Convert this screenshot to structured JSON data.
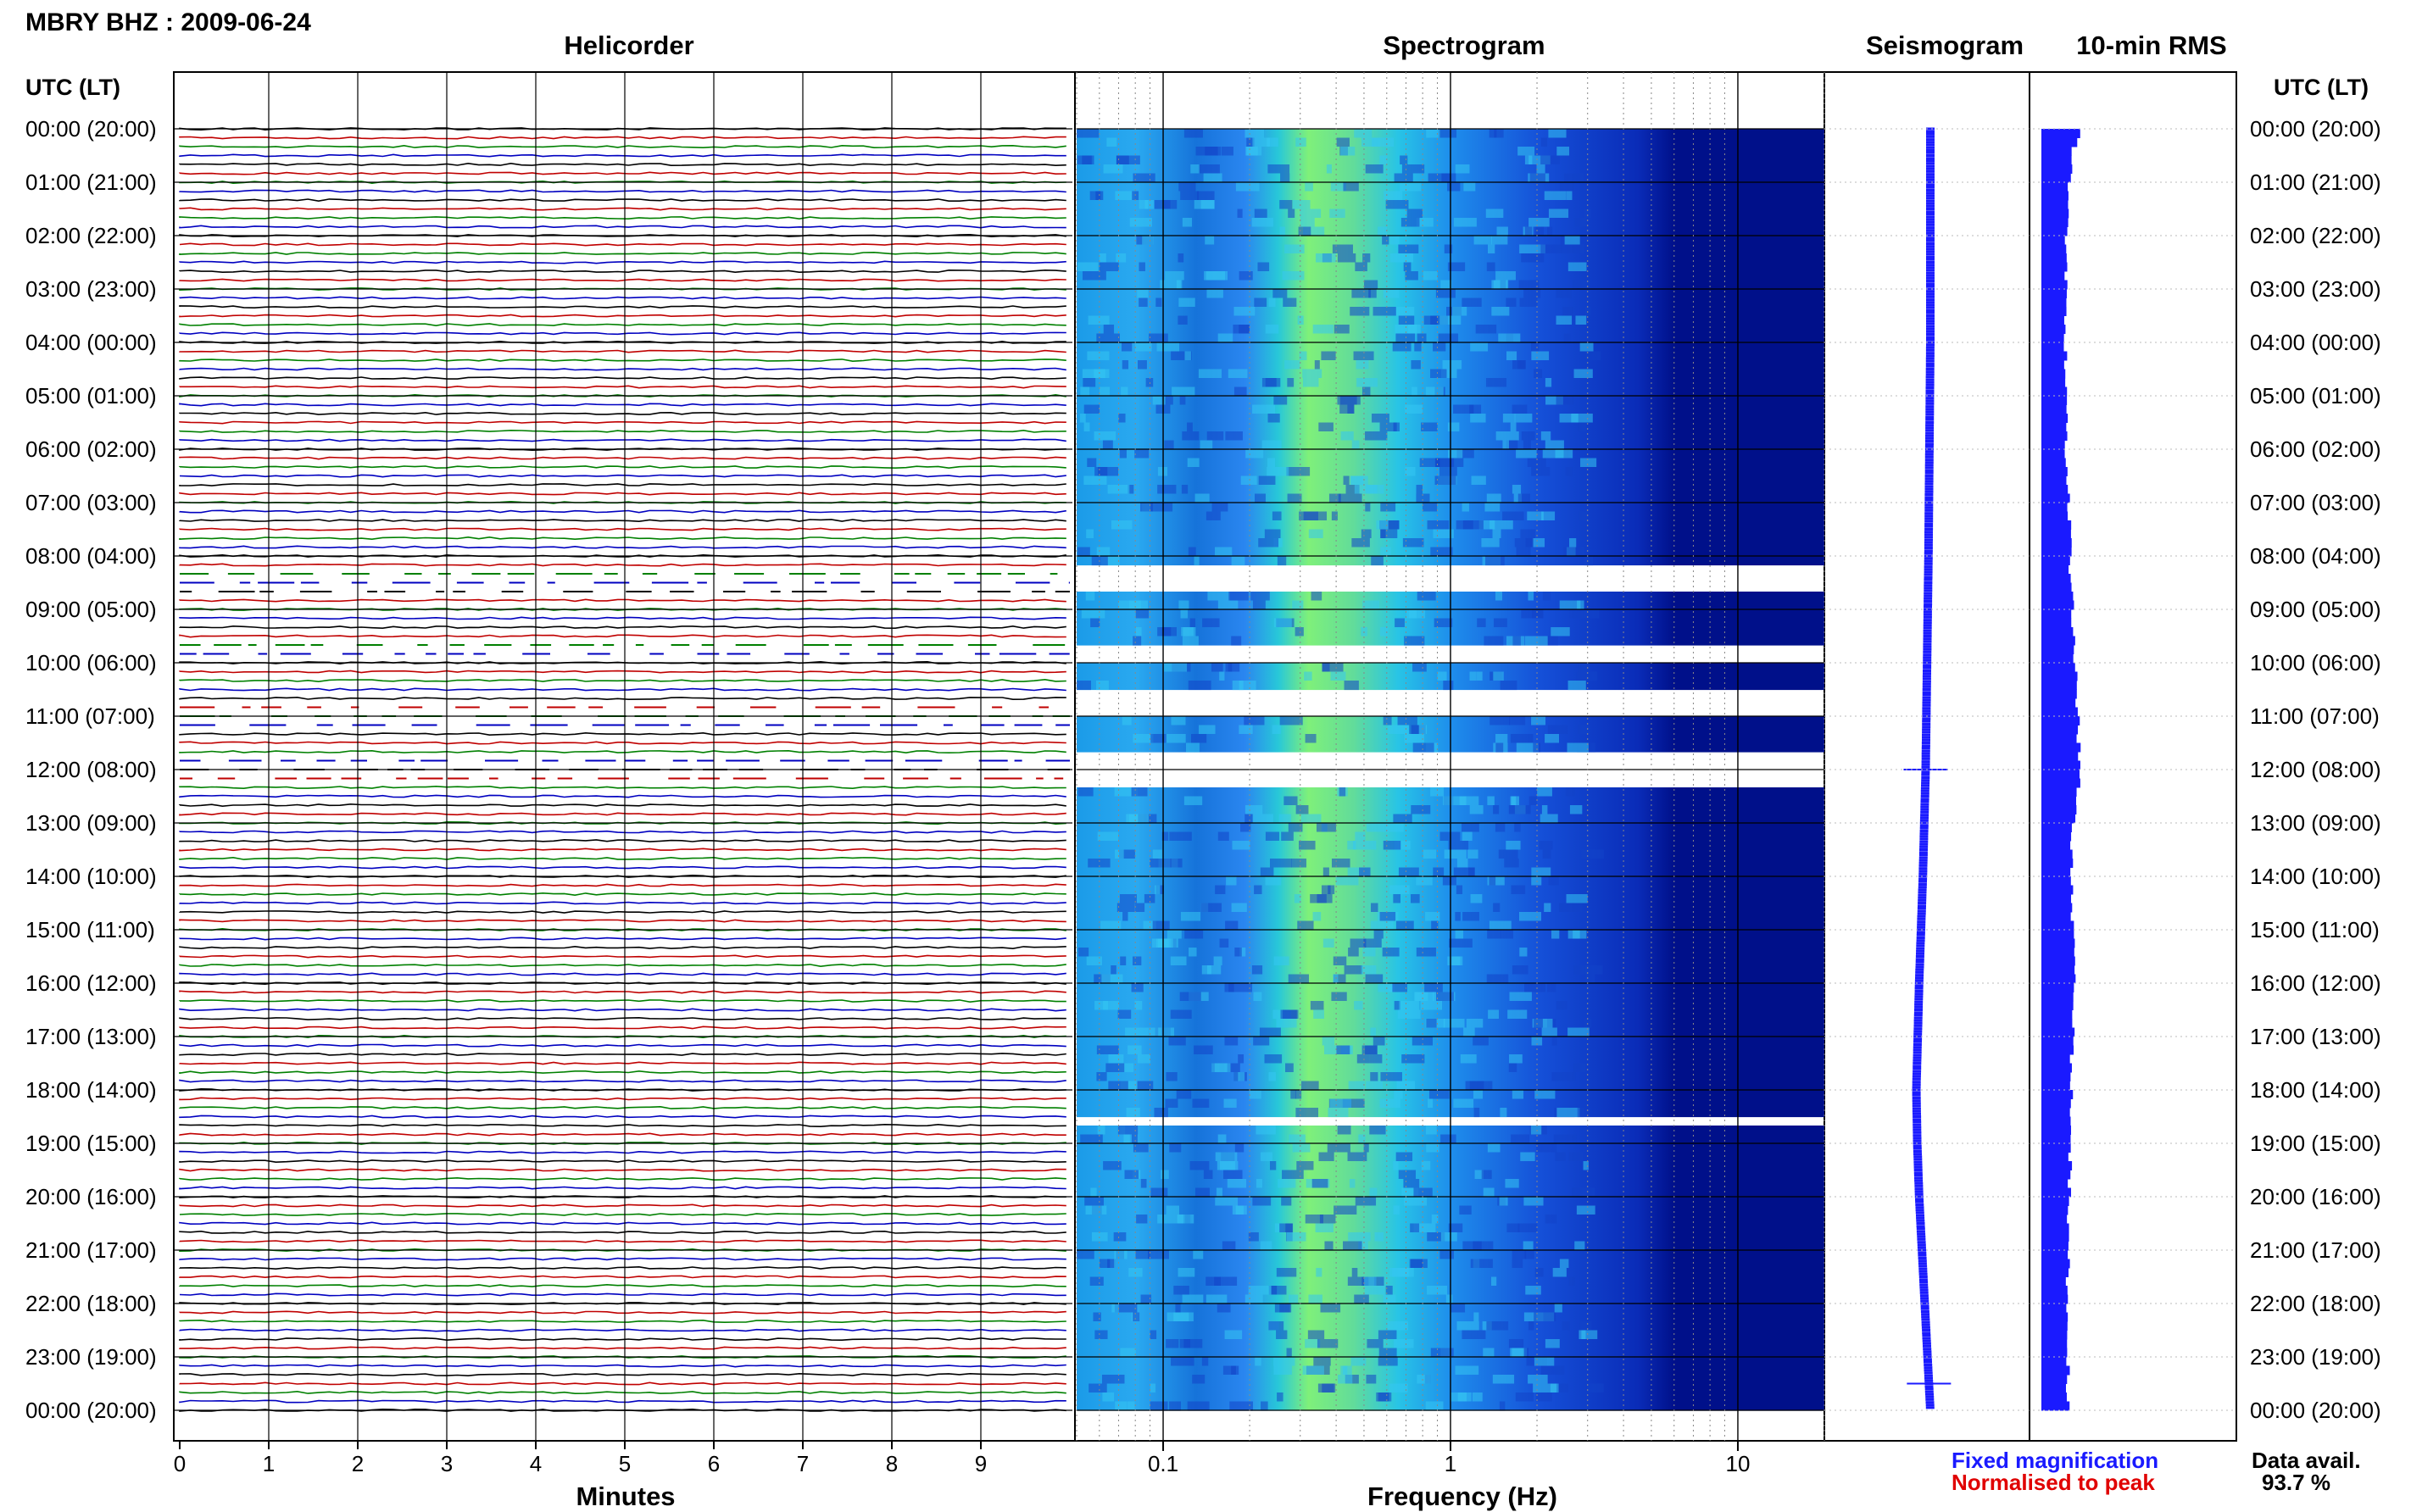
{
  "header": {
    "station_title": "MBRY BHZ : 2009-06-24"
  },
  "panels": {
    "helicorder": "Helicorder",
    "spectrogram": "Spectrogram",
    "seismogram": "Seismogram",
    "rms": "10-min RMS"
  },
  "axes": {
    "utc_label_left": "UTC (LT)",
    "utc_label_right": "UTC (LT)",
    "time_labels": [
      "00:00 (20:00)",
      "01:00 (21:00)",
      "02:00 (22:00)",
      "03:00 (23:00)",
      "04:00 (00:00)",
      "05:00 (01:00)",
      "06:00 (02:00)",
      "07:00 (03:00)",
      "08:00 (04:00)",
      "09:00 (05:00)",
      "10:00 (06:00)",
      "11:00 (07:00)",
      "12:00 (08:00)",
      "13:00 (09:00)",
      "14:00 (10:00)",
      "15:00 (11:00)",
      "16:00 (12:00)",
      "17:00 (13:00)",
      "18:00 (14:00)",
      "19:00 (15:00)",
      "20:00 (16:00)",
      "21:00 (17:00)",
      "22:00 (18:00)",
      "23:00 (19:00)",
      "00:00 (20:00)"
    ],
    "minutes_title": "Minutes",
    "minutes_ticks": [
      "0",
      "1",
      "2",
      "3",
      "4",
      "5",
      "6",
      "7",
      "8",
      "9"
    ],
    "frequency_title": "Frequency (Hz)",
    "frequency_ticks": [
      "0.1",
      "1",
      "10"
    ]
  },
  "legend": {
    "fixed": "Fixed magnification",
    "normalised": "Normalised to peak"
  },
  "availability": {
    "label": "Data avail.",
    "value": "93.7 %"
  },
  "colors": {
    "trace_cycle": [
      "#000000",
      "#c00000",
      "#008000",
      "#0000c0"
    ],
    "seismogram": "#1a1aff",
    "rms_bar": "#1a1aff",
    "spectro_dark": "#00108a",
    "spectro_mid": "#2a8cff",
    "spectro_peak": "#7ff07a"
  },
  "chart_data": [
    {
      "type": "line",
      "title": "Helicorder",
      "xlabel": "Minutes",
      "xlim": [
        0,
        10
      ],
      "x_ticks": [
        0,
        1,
        2,
        3,
        4,
        5,
        6,
        7,
        8,
        9
      ],
      "ylim_hours_utc": [
        0,
        24
      ],
      "lines_per_hour": 6,
      "gap_intervals_hours_utc": [
        [
          8.2,
          8.7
        ],
        [
          9.6,
          9.9
        ],
        [
          10.7,
          11.2
        ],
        [
          11.7,
          12.3
        ]
      ]
    },
    {
      "type": "heatmap",
      "title": "Spectrogram",
      "xlabel": "Frequency (Hz)",
      "x_scale": "log",
      "xlim": [
        0.05,
        20
      ],
      "x_ticks": [
        0.1,
        1,
        10
      ],
      "ylim_hours_utc": [
        0,
        24
      ],
      "peak_band_hz": [
        0.2,
        0.6
      ],
      "gap_intervals_hours_utc": [
        [
          7.65,
          7.75
        ],
        [
          8.25,
          8.7
        ],
        [
          9.65,
          10.0
        ],
        [
          10.55,
          10.6
        ],
        [
          10.75,
          10.8
        ],
        [
          10.9,
          10.95
        ],
        [
          11.0,
          11.05
        ],
        [
          11.15,
          11.2
        ],
        [
          11.45,
          11.5
        ],
        [
          11.7,
          12.4
        ],
        [
          18.55,
          18.6
        ],
        [
          23.65,
          23.7
        ]
      ]
    },
    {
      "type": "line",
      "title": "Seismogram",
      "xlim": [
        -1,
        1
      ],
      "ylim_hours_utc": [
        0,
        24
      ],
      "drift_points": [
        [
          0,
          0
        ],
        [
          4,
          0
        ],
        [
          8,
          -0.02
        ],
        [
          12,
          -0.05
        ],
        [
          14,
          -0.08
        ],
        [
          16,
          -0.12
        ],
        [
          18,
          -0.15
        ],
        [
          19,
          -0.14
        ],
        [
          20,
          -0.12
        ],
        [
          22,
          -0.06
        ],
        [
          24,
          0
        ]
      ],
      "event_hours_utc": [
        12.0,
        23.5
      ]
    },
    {
      "type": "bar",
      "title": "10-min RMS",
      "ylim_hours_utc": [
        0,
        24
      ],
      "relative_rms": [
        [
          0,
          0.45
        ],
        [
          0.3,
          0.38
        ],
        [
          1,
          0.32
        ],
        [
          3,
          0.28
        ],
        [
          6,
          0.3
        ],
        [
          8,
          0.34
        ],
        [
          12,
          0.46
        ],
        [
          13,
          0.36
        ],
        [
          16,
          0.38
        ],
        [
          18,
          0.35
        ],
        [
          20,
          0.33
        ],
        [
          22,
          0.3
        ],
        [
          24,
          0.32
        ]
      ]
    }
  ]
}
